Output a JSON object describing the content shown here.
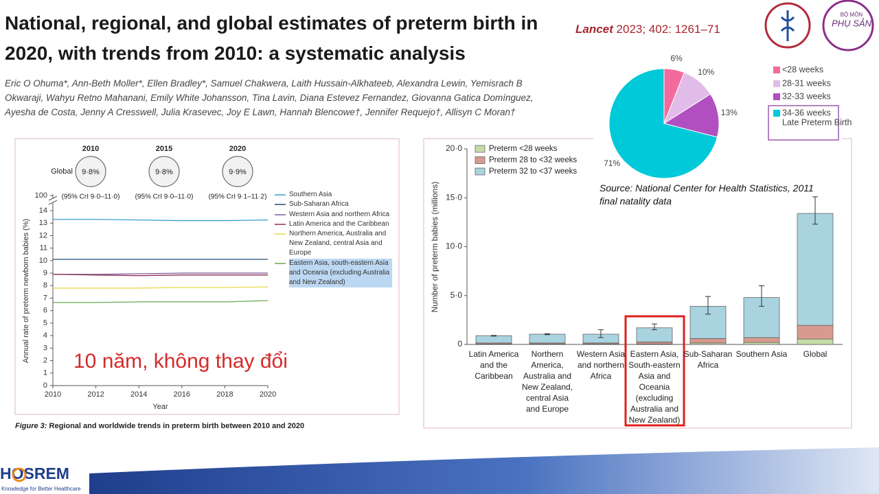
{
  "slide": {
    "title": "National, regional, and global estimates of preterm birth in 2020, with trends from 2010: a systematic analysis",
    "authors": "Eric O Ohuma*, Ann-Beth Moller*, Ellen Bradley*, Samuel Chakwera, Laith Hussain-Alkhateeb, Alexandra Lewin, Yemisrach B Okwaraji, Wahyu Retno Mahanani, Emily White Johansson, Tina Lavin, Diana Estevez Fernandez, Giovanna Gatica Domínguez, Ayesha de Costa, Jenny A Cresswell, Julia Krasevec, Joy E Lawn, Hannah Blencowe†, Jennifer Requejo†, Allisyn C Moran†",
    "citation_journal": "Lancet",
    "citation_ref": "2023; 402: 1261–71",
    "annotation": "10 năm, không thay đổi",
    "caption_label": "Figure 3:",
    "caption": "Regional and worldwide trends in preterm birth between 2010 and 2020",
    "source": "Source: National Center for Health Statistics, 2011 final natality data",
    "dept_logo": [
      "BỘ MÔN",
      "PHỤ SẢN"
    ],
    "logo": "HOSREM",
    "logo_tagline": "Knowledge for Better Healthcare"
  },
  "chart_data": [
    {
      "type": "line",
      "x": [
        2010,
        2012,
        2014,
        2016,
        2018,
        2020
      ],
      "xlim": [
        2010,
        2020
      ],
      "xticks": [
        2010,
        2012,
        2014,
        2016,
        2018,
        2020
      ],
      "ylim": [
        0,
        14
      ],
      "yticks": [
        0,
        1,
        2,
        3,
        4,
        5,
        6,
        7,
        8,
        9,
        10,
        11,
        12,
        13,
        14
      ],
      "y_break_tick": 100,
      "x_label": "Year",
      "y_label": "Annual rate of preterm newborn babies (%)",
      "highlight_series": 5,
      "series": [
        {
          "name": "Southern Asia",
          "color": "#3a9fd0",
          "values": [
            13.3,
            13.3,
            13.25,
            13.2,
            13.2,
            13.25
          ]
        },
        {
          "name": "Sub-Saharan Africa",
          "color": "#1f4e79",
          "values": [
            10.1,
            10.1,
            10.1,
            10.1,
            10.1,
            10.1
          ]
        },
        {
          "name": "Western Asia and northern Africa",
          "color": "#7a5c9a",
          "values": [
            8.9,
            8.9,
            8.95,
            9.0,
            9.0,
            9.0
          ]
        },
        {
          "name": "Latin America and the Caribbean",
          "color": "#8b2a4a",
          "values": [
            8.9,
            8.85,
            8.8,
            8.85,
            8.85,
            8.85
          ]
        },
        {
          "name": "Northern America, Australia and New Zealand, central Asia and Europe",
          "color": "#e8d84a",
          "values": [
            7.8,
            7.8,
            7.8,
            7.85,
            7.85,
            7.9
          ]
        },
        {
          "name": "Eastern Asia, south-eastern Asia and Oceania (excluding Australia and New Zealand)",
          "color": "#6aa84f",
          "values": [
            6.65,
            6.65,
            6.7,
            6.7,
            6.7,
            6.8
          ]
        }
      ],
      "estimate_title": "Global",
      "estimate_years": [
        2010,
        2015,
        2020
      ],
      "estimate_values": [
        9.8,
        9.8,
        9.9
      ],
      "estimate_value_labels": [
        "9·8%",
        "9·8%",
        "9·9%"
      ],
      "estimate_ci_labels": [
        "(95% CrI 9·0–11·0)",
        "(95% CrI 9·0–11·0)",
        "(95% CrI 9·1–11·2)"
      ]
    },
    {
      "type": "stacked_bar",
      "categories": [
        "Latin America and the Caribbean",
        "Northern America, Australia and New Zealand, central Asia and Europe",
        "Western Asia and northern Africa",
        "Eastern Asia, South-eastern Asia and Oceania (excluding Australia and New Zealand)",
        "Sub-Saharan Africa",
        "Southern Asia",
        "Global"
      ],
      "ylim": [
        0,
        20
      ],
      "yticks": [
        0,
        {
          "value": 5,
          "label": "5·0"
        },
        {
          "value": 10,
          "label": "10·0"
        },
        {
          "value": 15,
          "label": "15·0"
        },
        {
          "value": 20,
          "label": "20·0"
        }
      ],
      "y_label": "Number of preterm babies (millions)",
      "legend": "upper left",
      "highlight_category": 3,
      "series": [
        {
          "name": "Preterm <28 weeks",
          "color": "#c6dca8",
          "values": [
            0.05,
            0.05,
            0.05,
            0.05,
            0.15,
            0.2,
            0.55
          ]
        },
        {
          "name": "Preterm 28 to <32 weeks",
          "color": "#d89a90",
          "values": [
            0.1,
            0.1,
            0.1,
            0.2,
            0.45,
            0.5,
            1.4
          ]
        },
        {
          "name": "Preterm 32 to <37 weeks",
          "color": "#a9d3df",
          "values": [
            0.75,
            0.9,
            0.9,
            1.45,
            3.3,
            4.1,
            11.45
          ]
        }
      ],
      "ci": [
        [
          0.85,
          0.92
        ],
        [
          1.0,
          1.1
        ],
        [
          0.7,
          1.5
        ],
        [
          1.5,
          2.1
        ],
        [
          3.1,
          4.9
        ],
        [
          3.9,
          6.0
        ],
        [
          12.3,
          15.1
        ]
      ]
    },
    {
      "type": "pie",
      "categories": [
        "<28 weeks",
        "28-31 weeks",
        "32-33 weeks",
        "34-36 weeks"
      ],
      "values": [
        6,
        10,
        13,
        71
      ],
      "value_labels": [
        "6%",
        "10%",
        "13%",
        "71%"
      ],
      "colors": [
        "#f26b9c",
        "#e2bce8",
        "#b14fc1",
        "#00c9d9"
      ],
      "legend_note": "Late Preterm Birth",
      "highlight_category": 3
    }
  ]
}
